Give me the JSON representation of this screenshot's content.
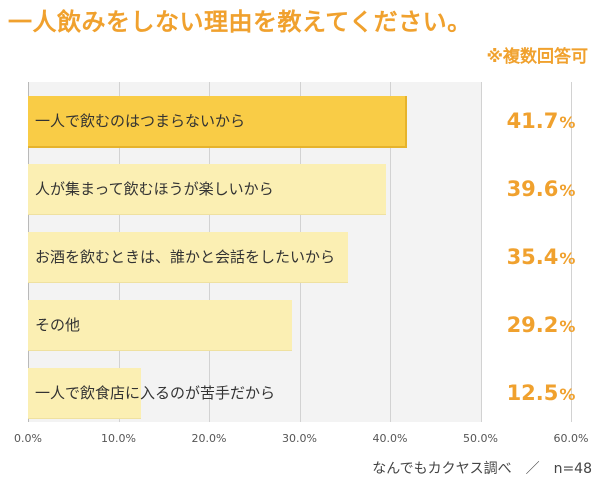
{
  "title": "一人飲みをしない理由を教えてください。",
  "note": "※複数回答可",
  "source": "なんでもカクヤス調べ　／　n=48",
  "colors": {
    "accent": "#f0a12e",
    "bar_highlight": "#f9cc46",
    "bar_normal": "#fbefb3"
  },
  "chart_data": {
    "type": "bar",
    "orientation": "horizontal",
    "categories": [
      "一人で飲むのはつまらないから",
      "人が集まって飲むほうが楽しいから",
      "お酒を飲むときは、誰かと会話をしたいから",
      "その他",
      "一人で飲食店に入るのが苦手だから"
    ],
    "values": [
      41.7,
      39.6,
      35.4,
      29.2,
      12.5
    ],
    "value_labels": [
      "41.7",
      "39.6",
      "35.4",
      "29.2",
      "12.5"
    ],
    "unit": "%",
    "x_ticks": [
      "0.0%",
      "10.0%",
      "20.0%",
      "30.0%",
      "40.0%",
      "50.0%",
      "60.0%"
    ],
    "xlim": [
      0,
      60
    ],
    "grid": true
  }
}
